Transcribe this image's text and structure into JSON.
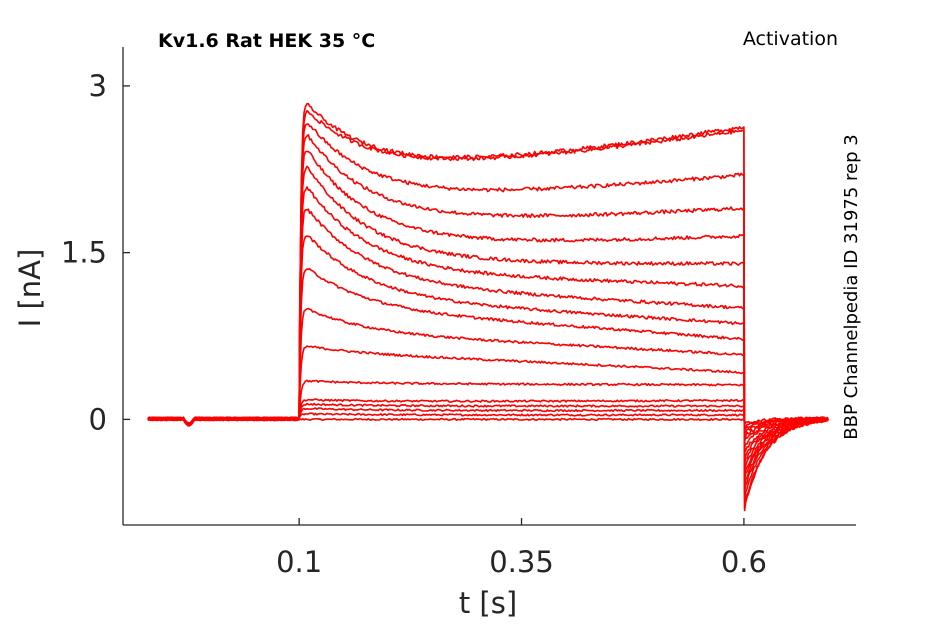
{
  "chart_data": {
    "type": "line",
    "title": "Kv1.6  Rat  HEK  35 °C",
    "protocol_label": "Activation",
    "side_label": "BBP Channelpedia ID 31975 rep 3",
    "xlabel": "t [s]",
    "ylabel": "I [nA]",
    "xlim": [
      -0.098,
      0.726
    ],
    "ylim": [
      -0.95,
      3.35
    ],
    "xticks": [
      0.1,
      0.35,
      0.6
    ],
    "xtick_labels": [
      "0.1",
      "0.35",
      "0.6"
    ],
    "yticks": [
      0,
      1.5,
      3
    ],
    "ytick_labels": [
      "0",
      "1.5",
      "3"
    ],
    "grid": false,
    "line_color": "#ff0000",
    "pulse_start": 0.1,
    "pulse_end": 0.6,
    "x_end": 0.695,
    "series": [
      {
        "steady": 0.0,
        "peak": 0.0,
        "end": 0.0,
        "tail": -0.05
      },
      {
        "steady": 0.04,
        "peak": 0.05,
        "end": 0.04,
        "tail": -0.08
      },
      {
        "steady": 0.08,
        "peak": 0.1,
        "end": 0.08,
        "tail": -0.1
      },
      {
        "steady": 0.12,
        "peak": 0.14,
        "end": 0.12,
        "tail": -0.13
      },
      {
        "steady": 0.16,
        "peak": 0.18,
        "end": 0.17,
        "tail": -0.16
      },
      {
        "steady": 0.32,
        "peak": 0.35,
        "end": 0.31,
        "tail": -0.2
      },
      {
        "steady": 0.58,
        "peak": 0.67,
        "end": 0.42,
        "tail": -0.25
      },
      {
        "steady": 0.75,
        "peak": 1.03,
        "end": 0.58,
        "tail": -0.3
      },
      {
        "steady": 0.95,
        "peak": 1.42,
        "end": 0.72,
        "tail": -0.35
      },
      {
        "steady": 1.05,
        "peak": 1.75,
        "end": 0.86,
        "tail": -0.4
      },
      {
        "steady": 1.18,
        "peak": 2.0,
        "end": 1.0,
        "tail": -0.45
      },
      {
        "steady": 1.3,
        "peak": 2.2,
        "end": 1.2,
        "tail": -0.5
      },
      {
        "steady": 1.4,
        "peak": 2.4,
        "end": 1.4,
        "tail": -0.55
      },
      {
        "steady": 1.55,
        "peak": 2.55,
        "end": 1.65,
        "tail": -0.6
      },
      {
        "steady": 1.75,
        "peak": 2.68,
        "end": 1.9,
        "tail": -0.65
      },
      {
        "steady": 1.95,
        "peak": 2.78,
        "end": 2.2,
        "tail": -0.72
      },
      {
        "steady": 2.2,
        "peak": 2.86,
        "end": 2.6,
        "tail": -0.8
      },
      {
        "steady": 2.2,
        "peak": 2.93,
        "end": 2.63,
        "tail": -0.82
      }
    ]
  }
}
